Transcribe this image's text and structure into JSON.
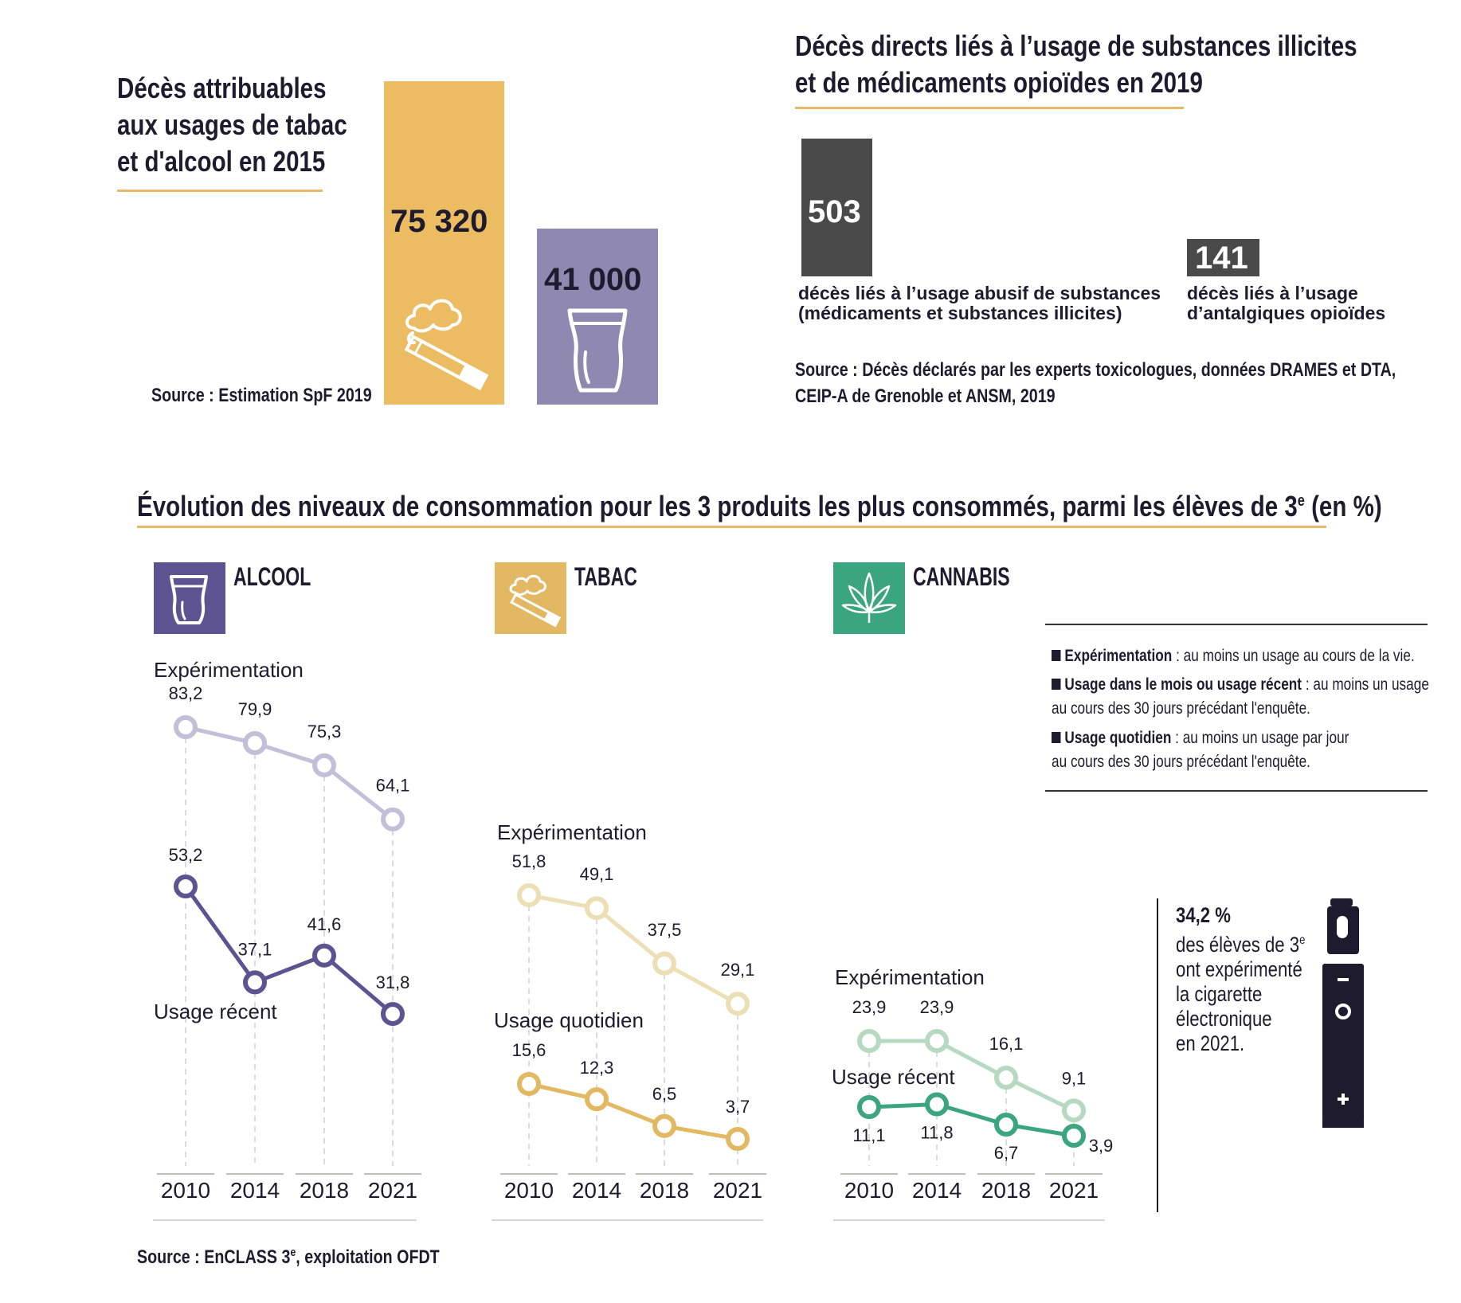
{
  "colors": {
    "tabac": "#ecbc63",
    "alcool": "#8f88b0",
    "dark": "#4a4a4a",
    "accent_rule": "#e8b866",
    "alcool_icon_bg": "#5e5391",
    "tabac_icon_bg": "#e2b862",
    "cannabis_icon_bg": "#3aa57e",
    "alcool_exp": "#c3bfd8",
    "alcool_recent": "#5e5391",
    "tabac_exp": "#ecdfb5",
    "tabac_daily": "#e2b862",
    "cannabis_exp": "#b7d9bf",
    "cannabis_recent": "#3aa57e",
    "ecig": "#1e1b2e"
  },
  "panel_tabac_alcool": {
    "title_lines": [
      "Décès attribuables",
      "aux usages de tabac",
      "et d'alcool en 2015"
    ],
    "tabac_value": "75 320",
    "alcool_value": "41 000",
    "source": "Source : Estimation SpF 2019",
    "icons": [
      "cigarette-icon",
      "beer-glass-icon"
    ]
  },
  "panel_drugs": {
    "title_lines": [
      "Décès directs liés à l’usage de substances illicites",
      "et de médicaments opioïdes en 2019"
    ],
    "value_1": "503",
    "desc_1_lines": [
      "décès liés à l’usage abusif de substances",
      "(médicaments et substances illicites)"
    ],
    "value_2": "141",
    "desc_2_lines": [
      "décès liés à l’usage",
      "d’antalgiques opioïdes"
    ],
    "source_lines": [
      "Source : Décès déclarés par les experts toxicologues, données DRAMES et DTA,",
      "CEIP-A de Grenoble et ANSM, 2019"
    ]
  },
  "evolution": {
    "title": "Évolution des niveaux de consommation pour les 3 produits les plus consommés, parmi les élèves de 3",
    "title_sup": "e",
    "title_end": " (en %)",
    "source_main": "Source : EnCLASS 3",
    "source_sup": "e",
    "source_end": ", exploitation OFDT",
    "legend": [
      {
        "term": "Expérimentation",
        "def": " : au moins un usage au cours de la vie.",
        "line2": ""
      },
      {
        "term": "Usage dans le mois ou usage récent",
        "def": " : au moins un usage",
        "line2": "au cours des 30 jours précédant l'enquête."
      },
      {
        "term": "Usage quotidien",
        "def": " : au moins un usage par jour",
        "line2": "au cours des 30 jours précédant l'enquête."
      }
    ],
    "ecig": {
      "value": "34,2 %",
      "line1": "des élèves de 3",
      "line1_sup": "e",
      "lines": [
        "ont expérimenté",
        "la cigarette",
        "électronique",
        "en 2021."
      ]
    }
  },
  "chart_data": [
    {
      "type": "bar",
      "title": "Décès attribuables aux usages de tabac et d'alcool en 2015",
      "categories": [
        "Tabac",
        "Alcool"
      ],
      "values": [
        75320,
        41000
      ],
      "labels": [
        "75 320",
        "41 000"
      ]
    },
    {
      "type": "bar",
      "title": "Décès directs liés à l’usage de substances illicites et de médicaments opioïdes en 2019",
      "categories": [
        "décès liés à l’usage abusif de substances (médicaments et substances illicites)",
        "décès liés à l’usage d’antalgiques opioïdes"
      ],
      "values": [
        503,
        141
      ]
    },
    {
      "type": "line",
      "title": "ALCOOL",
      "x": [
        "2010",
        "2014",
        "2018",
        "2021"
      ],
      "series": [
        {
          "name": "Expérimentation",
          "values": [
            83.2,
            79.9,
            75.3,
            64.1
          ],
          "labels": [
            "83,2",
            "79,9",
            "75,3",
            "64,1"
          ]
        },
        {
          "name": "Usage récent",
          "values": [
            53.2,
            37.1,
            41.6,
            31.8
          ],
          "labels": [
            "53,2",
            "37,1",
            "41,6",
            "31,8"
          ]
        }
      ]
    },
    {
      "type": "line",
      "title": "TABAC",
      "x": [
        "2010",
        "2014",
        "2018",
        "2021"
      ],
      "series": [
        {
          "name": "Expérimentation",
          "values": [
            51.8,
            49.1,
            37.5,
            29.1
          ],
          "labels": [
            "51,8",
            "49,1",
            "37,5",
            "29,1"
          ]
        },
        {
          "name": "Usage quotidien",
          "values": [
            15.6,
            12.3,
            6.5,
            3.7
          ],
          "labels": [
            "15,6",
            "12,3",
            "6,5",
            "3,7"
          ]
        }
      ]
    },
    {
      "type": "line",
      "title": "CANNABIS",
      "x": [
        "2010",
        "2014",
        "2018",
        "2021"
      ],
      "series": [
        {
          "name": "Expérimentation",
          "values": [
            23.9,
            23.9,
            16.1,
            9.1
          ],
          "labels": [
            "23,9",
            "23,9",
            "16,1",
            "9,1"
          ]
        },
        {
          "name": "Usage récent",
          "values": [
            11.1,
            11.8,
            6.7,
            3.9
          ],
          "labels": [
            "11,1",
            "11,8",
            "6,7",
            "3,9"
          ]
        }
      ]
    }
  ]
}
